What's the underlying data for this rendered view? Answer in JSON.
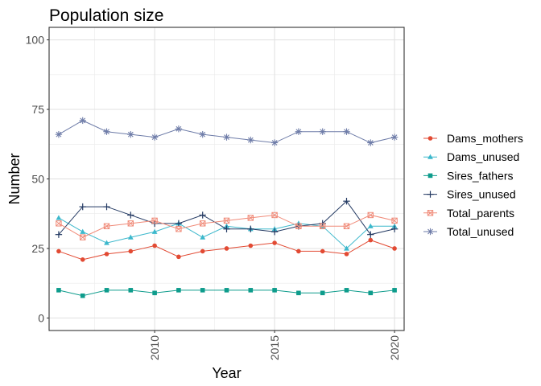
{
  "chart_data": {
    "type": "line",
    "title": "Population size",
    "xlabel": "Year",
    "ylabel": "Number",
    "xlim": [
      2005.6,
      2020.4
    ],
    "ylim": [
      -4.5,
      104.5
    ],
    "x_ticks": [
      2010,
      2015,
      2020
    ],
    "x_tick_labels": [
      "2010",
      "2015",
      "2020"
    ],
    "y_ticks": [
      0,
      25,
      50,
      75,
      100
    ],
    "y_tick_labels": [
      "0",
      "25",
      "50",
      "75",
      "100"
    ],
    "grid": true,
    "legend_position": "right",
    "x": [
      2006,
      2007,
      2008,
      2009,
      2010,
      2011,
      2012,
      2013,
      2014,
      2015,
      2016,
      2017,
      2018,
      2019,
      2020
    ],
    "series": [
      {
        "name": "Dams_mothers",
        "color": "#E24A33",
        "marker": "circle",
        "values": [
          24,
          21,
          23,
          24,
          26,
          22,
          24,
          25,
          26,
          27,
          24,
          24,
          23,
          28,
          25
        ]
      },
      {
        "name": "Dams_unused",
        "color": "#3CB8CC",
        "marker": "triangle",
        "values": [
          36,
          31,
          27,
          29,
          31,
          34,
          29,
          33,
          32,
          32,
          34,
          33,
          25,
          33,
          33
        ]
      },
      {
        "name": "Sires_fathers",
        "color": "#0E9C8C",
        "marker": "square",
        "values": [
          10,
          8,
          10,
          10,
          9,
          10,
          10,
          10,
          10,
          10,
          9,
          9,
          10,
          9,
          10
        ]
      },
      {
        "name": "Sires_unused",
        "color": "#243A63",
        "marker": "plus",
        "values": [
          30,
          40,
          40,
          37,
          34,
          34,
          37,
          32,
          32,
          31,
          33,
          34,
          42,
          30,
          32
        ]
      },
      {
        "name": "Total_parents",
        "color": "#F08A78",
        "marker": "square-cross",
        "values": [
          34,
          29,
          33,
          34,
          35,
          32,
          34,
          35,
          36,
          37,
          33,
          33,
          33,
          37,
          35
        ]
      },
      {
        "name": "Total_unused",
        "color": "#6E7CA8",
        "marker": "asterisk",
        "values": [
          66,
          71,
          67,
          66,
          65,
          68,
          66,
          65,
          64,
          63,
          67,
          67,
          67,
          63,
          65
        ]
      }
    ]
  }
}
